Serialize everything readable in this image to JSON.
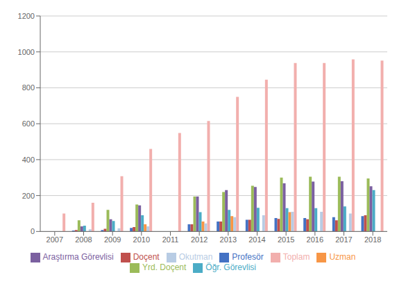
{
  "chart_data": {
    "type": "bar",
    "categories": [
      "2007",
      "2008",
      "2009",
      "2010",
      "2011",
      "2012",
      "2013",
      "2014",
      "2015",
      "2016",
      "2017",
      "2018"
    ],
    "series": [
      {
        "name": "Profesör",
        "color": "#4472C4",
        "values": [
          0,
          5,
          8,
          20,
          0,
          40,
          55,
          65,
          75,
          75,
          80,
          85
        ]
      },
      {
        "name": "Doçent",
        "color": "#C0504D",
        "values": [
          0,
          8,
          15,
          25,
          0,
          40,
          55,
          65,
          70,
          68,
          62,
          90
        ]
      },
      {
        "name": "Yrd. Doçent",
        "color": "#9BBB59",
        "values": [
          0,
          62,
          120,
          150,
          0,
          195,
          220,
          255,
          300,
          305,
          305,
          295
        ]
      },
      {
        "name": "Araştırma Görevlisi",
        "color": "#7B60A0",
        "values": [
          0,
          28,
          68,
          145,
          0,
          195,
          230,
          248,
          268,
          278,
          280,
          252
        ]
      },
      {
        "name": "Öğr. Görevlisi",
        "color": "#4BACC6",
        "values": [
          0,
          32,
          58,
          90,
          0,
          108,
          120,
          132,
          130,
          130,
          140,
          230
        ]
      },
      {
        "name": "Uzman",
        "color": "#F79646",
        "values": [
          0,
          0,
          0,
          40,
          0,
          55,
          85,
          0,
          108,
          0,
          0,
          0
        ]
      },
      {
        "name": "Okutman",
        "color": "#B8CCE4",
        "values": [
          0,
          12,
          18,
          28,
          0,
          45,
          80,
          90,
          110,
          110,
          100,
          0
        ]
      },
      {
        "name": "Toplam",
        "color": "#F2AFAD",
        "values": [
          100,
          160,
          308,
          460,
          548,
          615,
          750,
          845,
          938,
          938,
          958,
          952
        ]
      }
    ],
    "ylim": [
      0,
      1200
    ],
    "yticks": [
      0,
      200,
      400,
      600,
      800,
      1000,
      1200
    ],
    "grid": true,
    "legend": "bottom"
  }
}
